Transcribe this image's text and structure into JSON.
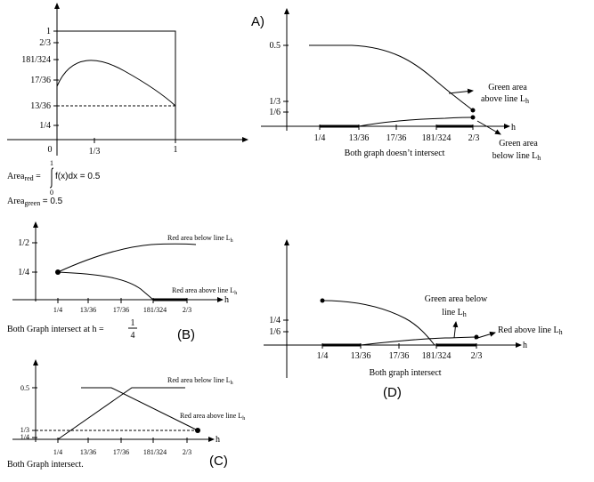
{
  "top_left": {
    "ytick_1": "1",
    "ytick_2_3": "2/3",
    "ytick_181_324": "181/324",
    "ytick_17_36": "17/36",
    "ytick_13_36": "13/36",
    "ytick_1_4": "1/4",
    "xtick_0": "0",
    "xtick_1_3": "1/3",
    "xtick_1": "1",
    "area_red_prefix": "Area",
    "area_red_sub": "red",
    "integral_upper": "1",
    "integral_lower": "0",
    "integral_body": "f(x)dx = 0.5",
    "area_green_prefix": "Area",
    "area_green_sub": "green",
    "area_green_value": "= 0.5"
  },
  "panel_a": {
    "letter": "A)",
    "ytick_05": "0.5",
    "ytick_1_3": "1/3",
    "ytick_1_6": "1/6",
    "xtick_1_4": "1/4",
    "xtick_13_36": "13/36",
    "xtick_17_36": "17/36",
    "xtick_181_324": "181/324",
    "xtick_2_3": "2/3",
    "axis_h": "h",
    "label_green_above_1": "Green area",
    "label_green_above_2": "above line L",
    "label_green_above_sub": "h",
    "label_green_below_1": "Green area",
    "label_green_below_2": "below line L",
    "label_green_below_sub": "h",
    "caption": "Both graph doesn’t intersect"
  },
  "panel_b": {
    "letter": "(B)",
    "ytick_1_2": "1/2",
    "ytick_1_4": "1/4",
    "xtick_1_4": "1/4",
    "xtick_13_36": "13/36",
    "xtick_17_36": "17/36",
    "xtick_181_324": "181/324",
    "xtick_2_3": "2/3",
    "axis_h": "h",
    "label_red_below": "Red area below line L",
    "label_red_below_sub": "h",
    "label_red_above": "Red area above line L",
    "label_red_above_sub": "h",
    "caption": "Both Graph intersect at h =",
    "frac_num": "1",
    "frac_den": "4"
  },
  "panel_c": {
    "letter": "(C)",
    "ytick_05": "0.5",
    "ytick_1_3": "1/3",
    "ytick_1_4": "1/4",
    "xtick_1_4": "1/4",
    "xtick_13_36": "13/36",
    "xtick_17_36": "17/36",
    "xtick_181_324": "181/324",
    "xtick_2_3": "2/3",
    "axis_h": "h",
    "label_red_below": "Red area below line L",
    "label_red_below_sub": "h",
    "label_red_above": "Red area above line L",
    "label_red_above_sub": "h",
    "caption": "Both Graph intersect."
  },
  "panel_d": {
    "letter": "(D)",
    "ytick_1_4": "1/4",
    "ytick_1_6": "1/6",
    "xtick_1_4": "1/4",
    "xtick_13_36": "13/36",
    "xtick_17_36": "17/36",
    "xtick_181_324": "181/324",
    "xtick_2_3": "2/3",
    "axis_h": "h",
    "label_green_below_1": "Green area below",
    "label_green_below_2": "line L",
    "label_green_below_sub": "h",
    "label_red_above": "Red above line L",
    "label_red_above_sub": "h",
    "caption": "Both graph intersect"
  }
}
